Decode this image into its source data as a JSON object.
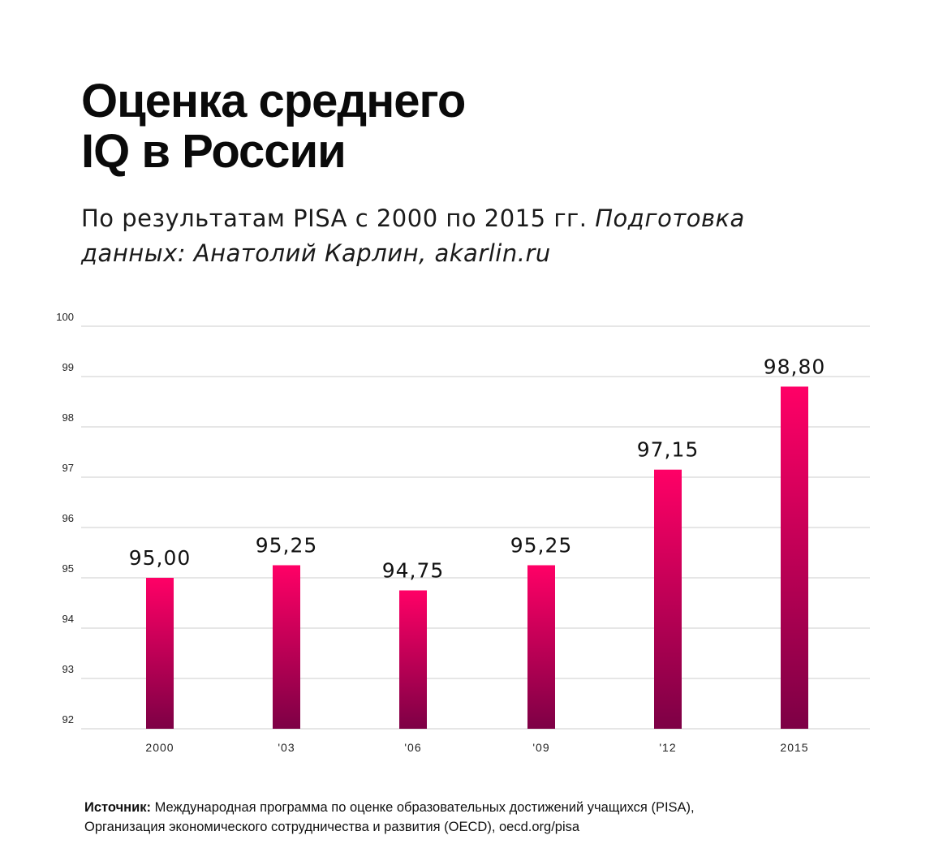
{
  "header": {
    "title_line1": "Оценка среднего",
    "title_line2": "IQ в России",
    "subtitle_plain": "По результатам PISA с 2000 по 2015 гг. ",
    "subtitle_italic": "Подготовка данных: Анатолий Карлин, akarlin.ru"
  },
  "footer": {
    "source_label": "Источник:",
    "source_line1": " Международная программа по оценке образовательных достижений учащихся (PISA),",
    "source_line2": "Организация экономического сотрудничества и развития (OECD), oecd.org/pisa"
  },
  "chart_data": {
    "type": "bar",
    "categories": [
      "2000",
      "'03",
      "'06",
      "'09",
      "'12",
      "2015"
    ],
    "values": [
      95.0,
      95.25,
      94.75,
      95.25,
      97.15,
      98.8
    ],
    "data_labels": [
      "95,00",
      "95,25",
      "94,75",
      "95,25",
      "97,15",
      "98,80"
    ],
    "ylim": [
      92,
      100
    ],
    "yticks": [
      92,
      93,
      94,
      95,
      96,
      97,
      98,
      99,
      100
    ],
    "grid": true,
    "colors": {
      "bar_top": "#ff0066",
      "bar_bottom": "#7d0045",
      "grid": "#dddddd",
      "axis_text": "#222222"
    }
  }
}
